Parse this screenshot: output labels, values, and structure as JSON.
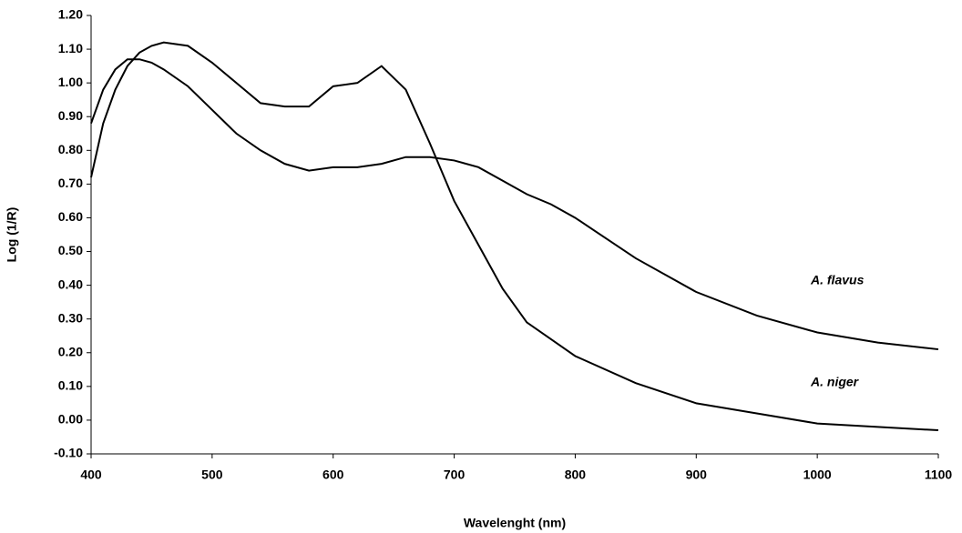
{
  "chart_data": {
    "type": "line",
    "xlabel": "Wavelenght (nm)",
    "ylabel": "Log (1/R)",
    "x": [
      400,
      410,
      420,
      430,
      440,
      450,
      460,
      480,
      500,
      520,
      540,
      560,
      580,
      600,
      620,
      640,
      660,
      680,
      700,
      720,
      740,
      760,
      780,
      800,
      850,
      900,
      950,
      1000,
      1050,
      1100
    ],
    "series": [
      {
        "name": "A. flavus",
        "color": "#000000",
        "values": [
          0.88,
          0.98,
          1.04,
          1.07,
          1.07,
          1.06,
          1.04,
          0.99,
          0.92,
          0.85,
          0.8,
          0.76,
          0.74,
          0.75,
          0.75,
          0.76,
          0.78,
          0.78,
          0.77,
          0.75,
          0.71,
          0.67,
          0.64,
          0.6,
          0.48,
          0.38,
          0.31,
          0.26,
          0.23,
          0.21
        ]
      },
      {
        "name": "A. niger",
        "color": "#000000",
        "values": [
          0.72,
          0.88,
          0.98,
          1.05,
          1.09,
          1.11,
          1.12,
          1.11,
          1.06,
          1.0,
          0.94,
          0.93,
          0.93,
          0.99,
          1.0,
          1.05,
          0.98,
          0.82,
          0.65,
          0.52,
          0.39,
          0.29,
          0.24,
          0.19,
          0.11,
          0.05,
          0.02,
          -0.01,
          -0.02,
          -0.03
        ]
      }
    ],
    "xlim": [
      400,
      1100
    ],
    "xticks": [
      400,
      500,
      600,
      700,
      800,
      900,
      1000,
      1100
    ],
    "ylim": [
      -0.1,
      1.2
    ],
    "yticks": [
      {
        "value": -0.1,
        "label": "-0.10"
      },
      {
        "value": 0,
        "label": "0.00"
      },
      {
        "value": 0.1,
        "label": "0.10"
      },
      {
        "value": 0.2,
        "label": "0.20"
      },
      {
        "value": 0.3,
        "label": "0.30"
      },
      {
        "value": 0.4,
        "label": "0.40"
      },
      {
        "value": 0.5,
        "label": "0.50"
      },
      {
        "value": 0.6,
        "label": "0.60"
      },
      {
        "value": 0.7,
        "label": "0.70"
      },
      {
        "value": 0.8,
        "label": "0.80"
      },
      {
        "value": 0.9,
        "label": "0.90"
      },
      {
        "value": 1.0,
        "label": "1.00"
      },
      {
        "value": 1.1,
        "label": "1.10"
      },
      {
        "value": 1.2,
        "label": "1.20"
      }
    ],
    "grid": false
  }
}
